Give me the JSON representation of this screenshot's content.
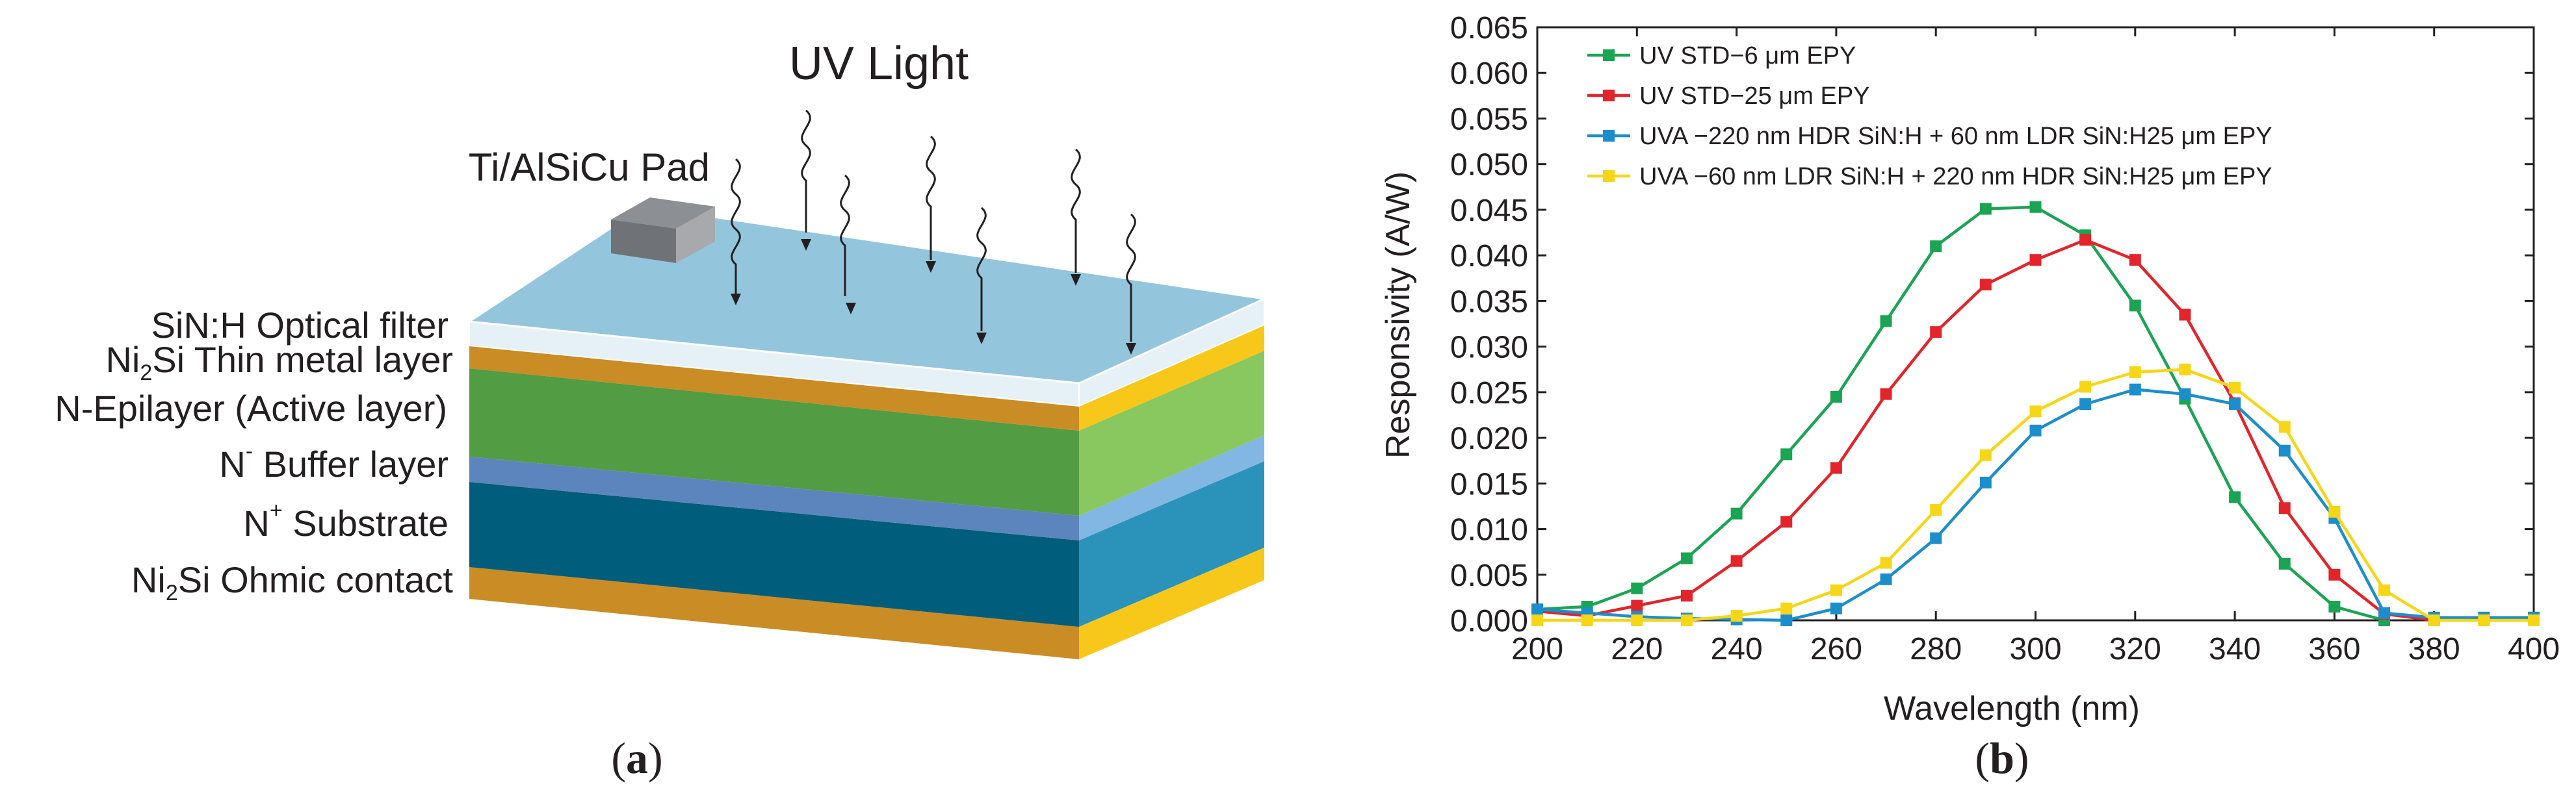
{
  "panel_a": {
    "caption": "a",
    "uv_label": "UV Light",
    "pad_label": "Ti/AlSiCu Pad",
    "layer_labels": {
      "sin": "SiN:H Optical filter",
      "ni2si_thin": {
        "pre": "Ni",
        "sub": "2",
        "post": "Si Thin metal layer"
      },
      "epi": "N-Epilayer (Active layer)",
      "buffer": {
        "pre": "N",
        "sup": "-",
        "post": " Buffer layer"
      },
      "substrate": {
        "pre": "N",
        "sup": "+",
        "post": " Substrate"
      },
      "ohmic": {
        "pre": "Ni",
        "sub": "2",
        "post": "Si Ohmic contact"
      }
    },
    "colors": {
      "sin_top": "#93c6dd",
      "sin_edge": "#e6f1f7",
      "gold_front": "#ca8c24",
      "gold_side": "#f7c81a",
      "epi_front": "#529c44",
      "epi_side": "#88c85f",
      "buffer_front": "#5b85bc",
      "buffer_side": "#82b6e3",
      "sub_front": "#005d7b",
      "sub_side": "#2b93ba",
      "pad_front": "#6f7378",
      "pad_side": "#a7a9ac",
      "pad_top": "#8c8f93"
    }
  },
  "panel_b": {
    "caption": "b"
  },
  "chart_data": {
    "type": "line",
    "title": "",
    "xlabel": "Wavelength (nm)",
    "ylabel": "Responsivity (A/W)",
    "xlim": [
      200,
      400
    ],
    "ylim": [
      0,
      0.065
    ],
    "xticks": [
      200,
      220,
      240,
      260,
      280,
      300,
      320,
      340,
      360,
      380,
      400
    ],
    "xtick_labels": [
      "200",
      "220",
      "240",
      "260",
      "280",
      "300",
      "320",
      "340",
      "360",
      "380",
      "400"
    ],
    "yticks": [
      0,
      0.005,
      0.01,
      0.015,
      0.02,
      0.025,
      0.03,
      0.035,
      0.04,
      0.045,
      0.05,
      0.055,
      0.06,
      0.065
    ],
    "ytick_labels": [
      "0.000",
      "0.005",
      "0.010",
      "0.015",
      "0.020",
      "0.025",
      "0.030",
      "0.035",
      "0.040",
      "0.045",
      "0.050",
      "0.055",
      "0.060",
      "0.065"
    ],
    "grid": false,
    "legend_position": "top-left",
    "series": [
      {
        "name": "UV STD−6 μm EPY",
        "color": "#1aa453",
        "x": [
          200,
          210,
          220,
          230,
          240,
          250,
          260,
          270,
          280,
          290,
          300,
          310,
          320,
          330,
          340,
          350,
          360,
          370
        ],
        "y": [
          0.0012,
          0.0015,
          0.0035,
          0.0068,
          0.0117,
          0.0182,
          0.0245,
          0.0328,
          0.041,
          0.0451,
          0.0453,
          0.0422,
          0.0345,
          0.0243,
          0.0135,
          0.0062,
          0.0015,
          0.0
        ]
      },
      {
        "name": "UV STD−25 μm EPY",
        "color": "#e3242b",
        "x": [
          200,
          210,
          220,
          230,
          240,
          250,
          260,
          270,
          280,
          290,
          300,
          310,
          320,
          330,
          340,
          350,
          360,
          370,
          380
        ],
        "y": [
          0.001,
          0.0005,
          0.0016,
          0.0027,
          0.0065,
          0.0108,
          0.0167,
          0.0248,
          0.0316,
          0.0368,
          0.0395,
          0.0417,
          0.0395,
          0.0335,
          0.0238,
          0.0123,
          0.005,
          0.0007,
          0.0
        ]
      },
      {
        "name": "UVA −220 nm HDR SiN:H + 60 nm LDR SiN:H25 μm EPY",
        "color": "#1c8ecb",
        "x": [
          200,
          210,
          220,
          230,
          240,
          250,
          260,
          270,
          280,
          290,
          300,
          310,
          320,
          330,
          340,
          350,
          360,
          370,
          380,
          390,
          400
        ],
        "y": [
          0.0012,
          0.0008,
          0.0004,
          0.0002,
          0.0001,
          0.0,
          0.0013,
          0.0045,
          0.009,
          0.0151,
          0.0208,
          0.0237,
          0.0253,
          0.0248,
          0.0237,
          0.0186,
          0.0112,
          0.0008,
          0.0003,
          0.0003,
          0.0003
        ]
      },
      {
        "name": "UVA −60 nm LDR SiN:H + 220 nm HDR SiN:H25 μm EPY",
        "color": "#f6d617",
        "x": [
          200,
          210,
          220,
          230,
          240,
          250,
          260,
          270,
          280,
          290,
          300,
          310,
          320,
          330,
          340,
          350,
          360,
          370,
          380,
          390,
          400
        ],
        "y": [
          0.0,
          0.0,
          0.0,
          0.0,
          0.0005,
          0.0013,
          0.0033,
          0.0063,
          0.0121,
          0.0181,
          0.0229,
          0.0256,
          0.0272,
          0.0275,
          0.0255,
          0.0212,
          0.0119,
          0.0033,
          0.0,
          0.0,
          0.0
        ]
      }
    ]
  }
}
